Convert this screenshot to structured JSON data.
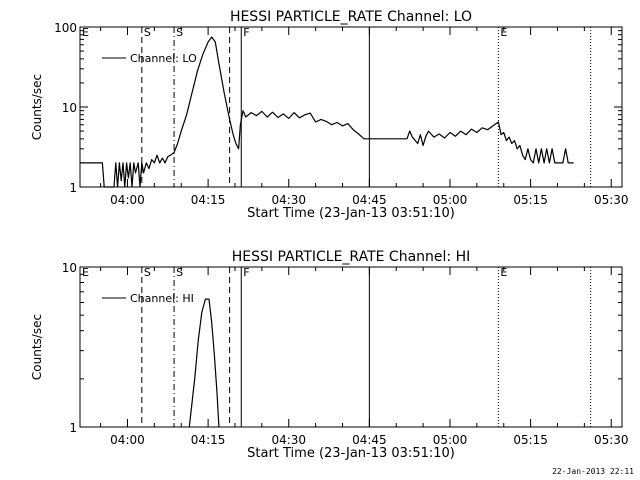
{
  "footer": {
    "date": "22-Jan-2013 22:11"
  },
  "chart_data": [
    {
      "type": "line",
      "title": "HESSI PARTICLE_RATE Channel: LO",
      "xlabel": "Start Time (23-Jan-13 03:51:10)",
      "ylabel": "Counts/sec",
      "yscale": "log",
      "ylim": [
        1,
        100
      ],
      "yticks": [
        1,
        10,
        100
      ],
      "ytick_labels": [
        "1",
        "10",
        "100"
      ],
      "xlim": [
        "03:51:10",
        "05:32:00"
      ],
      "xticks": [
        "04:00",
        "04:15",
        "04:30",
        "04:45",
        "05:00",
        "05:15",
        "05:30"
      ],
      "grid": false,
      "legend": {
        "position": "top-left",
        "entries": [
          "Channel: LO"
        ]
      },
      "markers": [
        {
          "time": "03:51:10",
          "label": "E",
          "style": "none"
        },
        {
          "time": "04:02:40",
          "label": "S",
          "style": "dashed"
        },
        {
          "time": "04:08:40",
          "label": "S",
          "style": "dashdot"
        },
        {
          "time": "04:19:00",
          "label": "",
          "style": "dashed"
        },
        {
          "time": "04:21:10",
          "label": "F",
          "style": "solid"
        },
        {
          "time": "04:45:00",
          "label": "",
          "style": "solid"
        },
        {
          "time": "05:09:00",
          "label": "E",
          "style": "dotted"
        },
        {
          "time": "05:26:10",
          "label": "",
          "style": "dotted"
        }
      ],
      "series": [
        {
          "name": "Channel: LO",
          "points": [
            [
              "03:51:10",
              2
            ],
            [
              "03:55:20",
              2
            ],
            [
              "03:55:40",
              1
            ],
            [
              "03:57:30",
              1
            ],
            [
              "03:57:50",
              2
            ],
            [
              "03:58:10",
              1
            ],
            [
              "03:58:30",
              2
            ],
            [
              "03:58:50",
              1.2
            ],
            [
              "03:59:10",
              2
            ],
            [
              "03:59:30",
              1
            ],
            [
              "03:59:50",
              2
            ],
            [
              "04:00:10",
              1.3
            ],
            [
              "04:00:30",
              2
            ],
            [
              "04:00:50",
              1
            ],
            [
              "04:01:10",
              2
            ],
            [
              "04:01:30",
              1.5
            ],
            [
              "04:02:00",
              2
            ],
            [
              "04:02:20",
              1
            ],
            [
              "04:02:40",
              2
            ],
            [
              "04:03:00",
              1.5
            ],
            [
              "04:03:30",
              2
            ],
            [
              "04:04:00",
              1.7
            ],
            [
              "04:04:30",
              2.2
            ],
            [
              "04:05:00",
              2
            ],
            [
              "04:05:30",
              2.5
            ],
            [
              "04:06:00",
              2
            ],
            [
              "04:06:30",
              2.3
            ],
            [
              "04:07:00",
              2
            ],
            [
              "04:07:30",
              2.4
            ],
            [
              "04:08:00",
              2.5
            ],
            [
              "04:08:40",
              2.7
            ],
            [
              "04:09:20",
              3.5
            ],
            [
              "04:10:00",
              5
            ],
            [
              "04:11:00",
              8
            ],
            [
              "04:12:00",
              15
            ],
            [
              "04:13:00",
              28
            ],
            [
              "04:14:00",
              45
            ],
            [
              "04:15:00",
              65
            ],
            [
              "04:15:40",
              75
            ],
            [
              "04:16:20",
              65
            ],
            [
              "04:17:00",
              35
            ],
            [
              "04:18:00",
              15
            ],
            [
              "04:19:00",
              7
            ],
            [
              "04:19:40",
              4.5
            ],
            [
              "04:20:10",
              3.5
            ],
            [
              "04:20:40",
              3
            ],
            [
              "04:21:00",
              6
            ],
            [
              "04:21:30",
              9
            ],
            [
              "04:22:00",
              7.5
            ],
            [
              "04:23:00",
              8.5
            ],
            [
              "04:24:00",
              7.8
            ],
            [
              "04:25:00",
              8.8
            ],
            [
              "04:26:00",
              7.5
            ],
            [
              "04:27:00",
              8.6
            ],
            [
              "04:28:00",
              7.4
            ],
            [
              "04:29:00",
              8.2
            ],
            [
              "04:30:00",
              7.2
            ],
            [
              "04:31:00",
              8.5
            ],
            [
              "04:32:00",
              7.3
            ],
            [
              "04:33:00",
              8
            ],
            [
              "04:34:00",
              8.4
            ],
            [
              "04:35:00",
              6.5
            ],
            [
              "04:36:00",
              7
            ],
            [
              "04:37:00",
              6.6
            ],
            [
              "04:38:00",
              6
            ],
            [
              "04:39:00",
              6.4
            ],
            [
              "04:40:00",
              5.8
            ],
            [
              "04:41:00",
              6.2
            ],
            [
              "04:42:00",
              5.2
            ],
            [
              "04:43:00",
              4.6
            ],
            [
              "04:44:00",
              4
            ],
            [
              "04:52:00",
              4
            ],
            [
              "04:52:30",
              5
            ],
            [
              "04:53:00",
              4.2
            ],
            [
              "04:54:00",
              3.5
            ],
            [
              "04:54:30",
              4.5
            ],
            [
              "04:55:00",
              3.3
            ],
            [
              "04:55:30",
              4.3
            ],
            [
              "04:56:00",
              5
            ],
            [
              "04:57:00",
              4.2
            ],
            [
              "04:58:00",
              4.6
            ],
            [
              "04:59:00",
              4.1
            ],
            [
              "05:00:00",
              4.8
            ],
            [
              "05:01:00",
              4.3
            ],
            [
              "05:02:00",
              5
            ],
            [
              "05:03:00",
              4.5
            ],
            [
              "05:04:00",
              5.3
            ],
            [
              "05:05:00",
              4.8
            ],
            [
              "05:06:00",
              5.5
            ],
            [
              "05:07:00",
              5.2
            ],
            [
              "05:08:00",
              5.8
            ],
            [
              "05:09:00",
              6.5
            ],
            [
              "05:09:30",
              4.5
            ],
            [
              "05:10:00",
              4.8
            ],
            [
              "05:10:30",
              3.8
            ],
            [
              "05:11:00",
              4.2
            ],
            [
              "05:11:30",
              3.5
            ],
            [
              "05:12:00",
              3.8
            ],
            [
              "05:12:30",
              3
            ],
            [
              "05:13:00",
              3.3
            ],
            [
              "05:13:30",
              2.5
            ],
            [
              "05:14:00",
              2.2
            ],
            [
              "05:14:30",
              3
            ],
            [
              "05:15:00",
              2.2
            ],
            [
              "05:15:30",
              2
            ],
            [
              "05:16:00",
              3
            ],
            [
              "05:16:30",
              2
            ],
            [
              "05:17:00",
              3
            ],
            [
              "05:17:30",
              2
            ],
            [
              "05:18:00",
              3
            ],
            [
              "05:18:30",
              2
            ],
            [
              "05:19:00",
              3
            ],
            [
              "05:19:30",
              2
            ],
            [
              "05:20:00",
              2
            ],
            [
              "05:21:00",
              2
            ],
            [
              "05:21:30",
              3
            ],
            [
              "05:22:00",
              2
            ],
            [
              "05:23:00",
              2
            ]
          ]
        }
      ]
    },
    {
      "type": "line",
      "title": "HESSI PARTICLE_RATE Channel: HI",
      "xlabel": "Start Time (23-Jan-13 03:51:10)",
      "ylabel": "Counts/sec",
      "yscale": "log",
      "ylim": [
        1,
        10
      ],
      "yticks": [
        1,
        10
      ],
      "ytick_labels": [
        "1",
        "10"
      ],
      "xlim": [
        "03:51:10",
        "05:32:00"
      ],
      "xticks": [
        "04:00",
        "04:15",
        "04:30",
        "04:45",
        "05:00",
        "05:15",
        "05:30"
      ],
      "grid": false,
      "legend": {
        "position": "top-left",
        "entries": [
          "Channel: HI"
        ]
      },
      "markers": [
        {
          "time": "03:51:10",
          "label": "E",
          "style": "none"
        },
        {
          "time": "04:02:40",
          "label": "S",
          "style": "dashed"
        },
        {
          "time": "04:08:40",
          "label": "S",
          "style": "dashdot"
        },
        {
          "time": "04:19:00",
          "label": "",
          "style": "dashed"
        },
        {
          "time": "04:21:10",
          "label": "F",
          "style": "solid"
        },
        {
          "time": "04:45:00",
          "label": "",
          "style": "solid"
        },
        {
          "time": "05:09:00",
          "label": "E",
          "style": "dotted"
        },
        {
          "time": "05:26:10",
          "label": "",
          "style": "dotted"
        }
      ],
      "series": [
        {
          "name": "Channel: HI",
          "points": [
            [
              "04:11:30",
              1
            ],
            [
              "04:12:30",
              2
            ],
            [
              "04:13:10",
              3.5
            ],
            [
              "04:13:50",
              5.2
            ],
            [
              "04:14:30",
              6.3
            ],
            [
              "04:15:10",
              6.3
            ],
            [
              "04:15:40",
              4.5
            ],
            [
              "04:16:10",
              2.8
            ],
            [
              "04:16:40",
              1.6
            ],
            [
              "04:17:00",
              1
            ]
          ]
        }
      ]
    }
  ]
}
